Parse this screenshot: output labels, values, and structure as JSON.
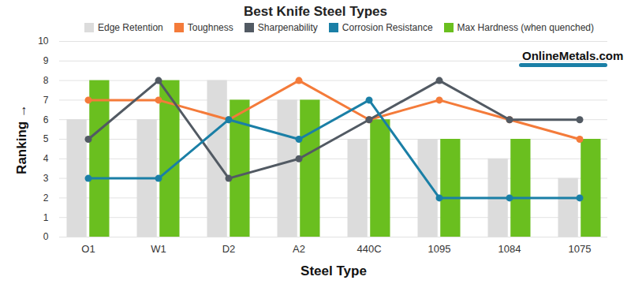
{
  "chart_data": {
    "type": "bar",
    "title": "Best Knife Steel Types",
    "x_label": "Steel Type",
    "y_label": "Ranking",
    "categories": [
      "O1",
      "W1",
      "D2",
      "A2",
      "440C",
      "1095",
      "1084",
      "1075"
    ],
    "series": [
      {
        "name": "Edge Retention",
        "type": "bar",
        "color": "#dcdcdc",
        "values": [
          6,
          6,
          8,
          7,
          5,
          5,
          4,
          3
        ]
      },
      {
        "name": "Toughness",
        "type": "line",
        "color": "#f47b3a",
        "marker": "circle",
        "values": [
          7,
          7,
          6,
          8,
          6,
          7,
          6,
          5
        ]
      },
      {
        "name": "Sharpenability",
        "type": "line",
        "color": "#525a63",
        "marker": "circle",
        "values": [
          5,
          8,
          3,
          4,
          6,
          8,
          6,
          6
        ]
      },
      {
        "name": "Corrosion Resistance",
        "type": "line",
        "color": "#1a7fa6",
        "marker": "circle",
        "values": [
          3,
          3,
          6,
          5,
          7,
          2,
          2,
          2
        ]
      },
      {
        "name": "Max Hardness (when quenched)",
        "type": "bar",
        "color": "#6abf1f",
        "values": [
          8,
          8,
          7,
          7,
          6,
          5,
          5,
          5
        ]
      }
    ],
    "ylim": [
      0,
      10
    ],
    "yticks": [
      0,
      1,
      2,
      3,
      4,
      5,
      6,
      7,
      8,
      9,
      10
    ],
    "grid": true,
    "legend": "top",
    "annotations": [
      "OnlineMetals.com"
    ]
  }
}
